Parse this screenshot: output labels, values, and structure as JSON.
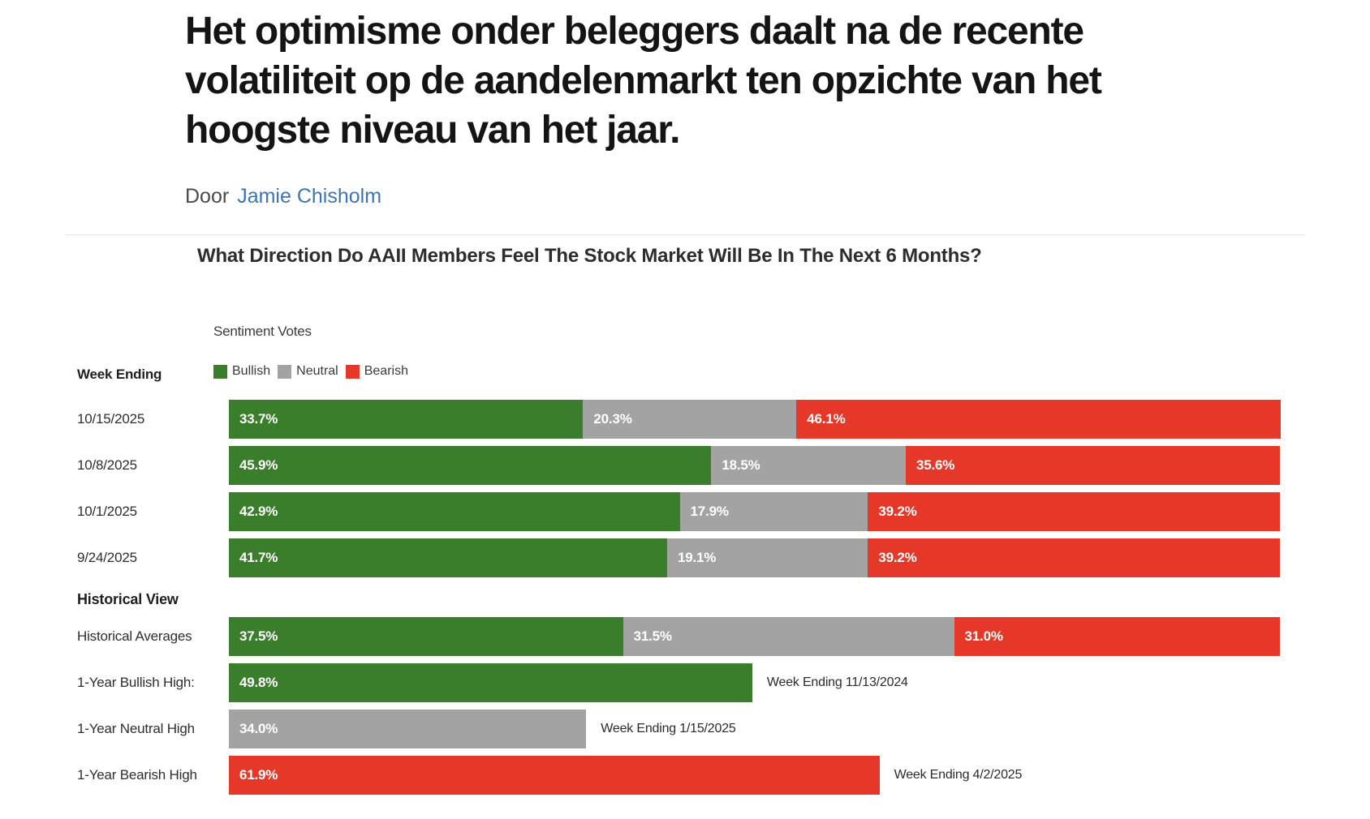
{
  "article": {
    "title": "Het optimisme onder beleggers daalt na de recente volatiliteit op de aandelenmarkt ten opzichte van het hoogste niveau van het jaar.",
    "byline_prefix": "Door",
    "author": "Jamie Chisholm"
  },
  "chart_data": {
    "type": "bar",
    "orientation": "horizontal",
    "stacked": true,
    "title": "What Direction Do AAII Members Feel The Stock Market Will Be In The Next 6 Months?",
    "legend_title": "Sentiment Votes",
    "legend_position": "top-left",
    "x_range_pct": [
      0,
      100
    ],
    "grid": false,
    "legend": [
      {
        "label": "Bullish",
        "color": "#3a7d2b"
      },
      {
        "label": "Neutral",
        "color": "#a3a3a3"
      },
      {
        "label": "Bearish",
        "color": "#e53829"
      }
    ],
    "groups": [
      {
        "section": "Week Ending",
        "rows": [
          {
            "label": "10/15/2025",
            "segments": [
              {
                "series": "Bullish",
                "value": 33.7
              },
              {
                "series": "Neutral",
                "value": 20.3
              },
              {
                "series": "Bearish",
                "value": 46.1
              }
            ]
          },
          {
            "label": "10/8/2025",
            "segments": [
              {
                "series": "Bullish",
                "value": 45.9
              },
              {
                "series": "Neutral",
                "value": 18.5
              },
              {
                "series": "Bearish",
                "value": 35.6
              }
            ]
          },
          {
            "label": "10/1/2025",
            "segments": [
              {
                "series": "Bullish",
                "value": 42.9
              },
              {
                "series": "Neutral",
                "value": 17.9
              },
              {
                "series": "Bearish",
                "value": 39.2
              }
            ]
          },
          {
            "label": "9/24/2025",
            "segments": [
              {
                "series": "Bullish",
                "value": 41.7
              },
              {
                "series": "Neutral",
                "value": 19.1
              },
              {
                "series": "Bearish",
                "value": 39.2
              }
            ]
          }
        ]
      },
      {
        "section": "Historical View",
        "rows": [
          {
            "label": "Historical Averages",
            "segments": [
              {
                "series": "Bullish",
                "value": 37.5
              },
              {
                "series": "Neutral",
                "value": 31.5
              },
              {
                "series": "Bearish",
                "value": 31.0
              }
            ]
          },
          {
            "label": "1-Year Bullish High:",
            "segments": [
              {
                "series": "Bullish",
                "value": 49.8
              }
            ],
            "annotation": "Week Ending 11/13/2024"
          },
          {
            "label": "1-Year Neutral High",
            "segments": [
              {
                "series": "Neutral",
                "value": 34.0
              }
            ],
            "annotation": "Week Ending 1/15/2025"
          },
          {
            "label": "1-Year Bearish High",
            "segments": [
              {
                "series": "Bearish",
                "value": 61.9
              }
            ],
            "annotation": "Week Ending 4/2/2025"
          }
        ]
      }
    ]
  }
}
